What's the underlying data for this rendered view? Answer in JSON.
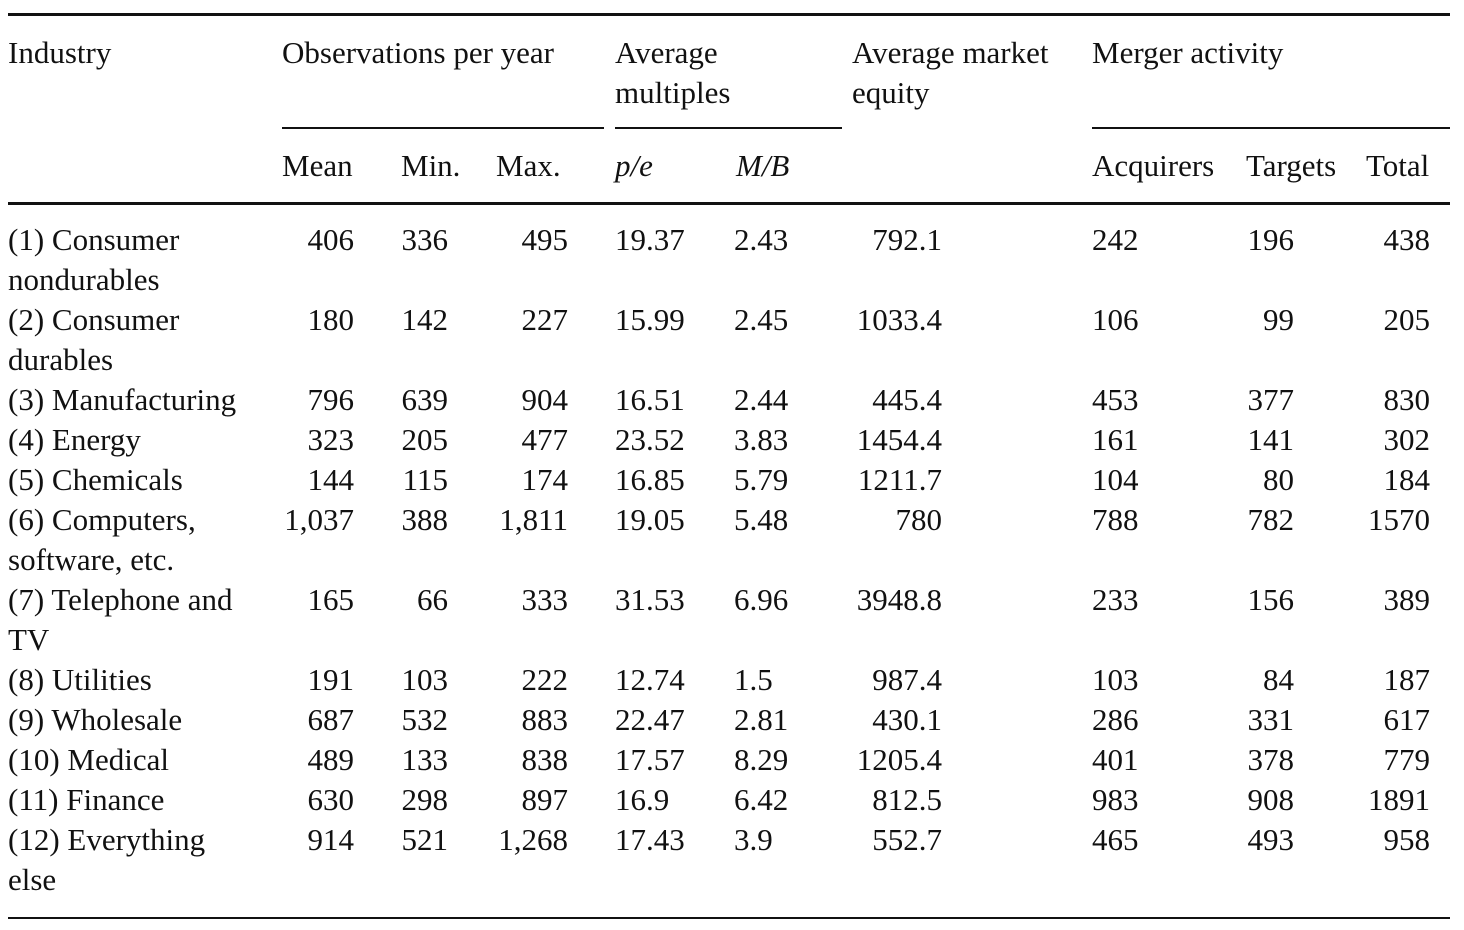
{
  "headers": {
    "industry": "Industry",
    "observations": "Observations per year",
    "multiples_line1": "Average",
    "multiples_line2": "multiples",
    "equity_line1": "Average market",
    "equity_line2": "equity",
    "merger": "Merger activity"
  },
  "subheaders": {
    "mean": "Mean",
    "min": "Min.",
    "max": "Max.",
    "pe": "p/e",
    "mb": "M/B",
    "acquirers": "Acquirers",
    "targets": "Targets",
    "total": "Total"
  },
  "rows": [
    {
      "industry_line1": "(1) Consumer",
      "industry_line2": "nondurables",
      "mean": "406",
      "min": "336",
      "max": "495",
      "pe": "19.37",
      "mb": "2.43",
      "equity": "792.1",
      "acquirers": "242",
      "targets": "196",
      "total": "438"
    },
    {
      "industry_line1": "(2) Consumer",
      "industry_line2": "durables",
      "mean": "180",
      "min": "142",
      "max": "227",
      "pe": "15.99",
      "mb": "2.45",
      "equity": "1033.4",
      "acquirers": "106",
      "targets": "99",
      "total": "205"
    },
    {
      "industry_line1": "(3) Manufacturing",
      "industry_line2": "",
      "mean": "796",
      "min": "639",
      "max": "904",
      "pe": "16.51",
      "mb": "2.44",
      "equity": "445.4",
      "acquirers": "453",
      "targets": "377",
      "total": "830"
    },
    {
      "industry_line1": "(4) Energy",
      "industry_line2": "",
      "mean": "323",
      "min": "205",
      "max": "477",
      "pe": "23.52",
      "mb": "3.83",
      "equity": "1454.4",
      "acquirers": "161",
      "targets": "141",
      "total": "302"
    },
    {
      "industry_line1": "(5) Chemicals",
      "industry_line2": "",
      "mean": "144",
      "min": "115",
      "max": "174",
      "pe": "16.85",
      "mb": "5.79",
      "equity": "1211.7",
      "acquirers": "104",
      "targets": "80",
      "total": "184"
    },
    {
      "industry_line1": "(6) Computers,",
      "industry_line2": "software, etc.",
      "mean": "1,037",
      "min": "388",
      "max": "1,811",
      "pe": "19.05",
      "mb": "5.48",
      "equity": "780",
      "acquirers": "788",
      "targets": "782",
      "total": "1570"
    },
    {
      "industry_line1": "(7) Telephone and",
      "industry_line2": "TV",
      "mean": "165",
      "min": "66",
      "max": "333",
      "pe": "31.53",
      "mb": "6.96",
      "equity": "3948.8",
      "acquirers": "233",
      "targets": "156",
      "total": "389"
    },
    {
      "industry_line1": "(8) Utilities",
      "industry_line2": "",
      "mean": "191",
      "min": "103",
      "max": "222",
      "pe": "12.74",
      "mb": "1.5",
      "equity": "987.4",
      "acquirers": "103",
      "targets": "84",
      "total": "187"
    },
    {
      "industry_line1": "(9) Wholesale",
      "industry_line2": "",
      "mean": "687",
      "min": "532",
      "max": "883",
      "pe": "22.47",
      "mb": "2.81",
      "equity": "430.1",
      "acquirers": "286",
      "targets": "331",
      "total": "617"
    },
    {
      "industry_line1": "(10) Medical",
      "industry_line2": "",
      "mean": "489",
      "min": "133",
      "max": "838",
      "pe": "17.57",
      "mb": "8.29",
      "equity": "1205.4",
      "acquirers": "401",
      "targets": "378",
      "total": "779"
    },
    {
      "industry_line1": "(11) Finance",
      "industry_line2": "",
      "mean": "630",
      "min": "298",
      "max": "897",
      "pe": "16.9",
      "mb": "6.42",
      "equity": "812.5",
      "acquirers": "983",
      "targets": "908",
      "total": "1891"
    },
    {
      "industry_line1": "(12) Everything",
      "industry_line2": "else",
      "mean": "914",
      "min": "521",
      "max": "1,268",
      "pe": "17.43",
      "mb": "3.9",
      "equity": "552.7",
      "acquirers": "465",
      "targets": "493",
      "total": "958"
    }
  ]
}
